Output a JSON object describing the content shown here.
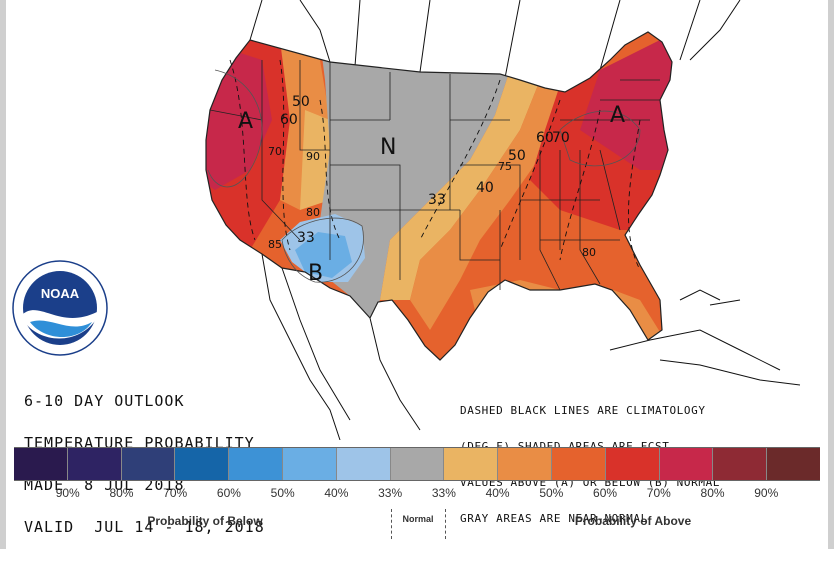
{
  "outlook": {
    "line1": "6-10 DAY OUTLOOK",
    "line2": "TEMPERATURE PROBABILITY",
    "line3": "MADE  8 JUL 2018",
    "line4": "VALID  JUL 14 - 18, 2018"
  },
  "notes": {
    "line1": "DASHED BLACK LINES ARE CLIMATOLOGY",
    "line2": "(DEG F) SHADED AREAS ARE FCST",
    "line3": "VALUES ABOVE (A) OR BELOW (B) NORMAL",
    "line4": "GRAY AREAS ARE NEAR-NORMAL"
  },
  "map_labels": {
    "above_west": "A",
    "above_east": "A",
    "below": "B",
    "normal": "N",
    "p33_sw": "33",
    "p33_plains": "33",
    "p40": "40",
    "p50_east": "50",
    "p50_west": "50",
    "p60_west": "60",
    "p60_east": "60",
    "p70_east": "70",
    "c70": "70",
    "c75": "75",
    "c80_sw": "80",
    "c80_se": "80",
    "c85": "85",
    "c90": "90"
  },
  "logo": {
    "text": "NOAA"
  },
  "legend": {
    "colors": [
      "#2a1a4e",
      "#2e2363",
      "#2f3f78",
      "#1565a8",
      "#3d92d6",
      "#6aaee4",
      "#9ec4e8",
      "#a8a8a8",
      "#eab463",
      "#e98d45",
      "#e5622d",
      "#d9322a",
      "#c7284a",
      "#8e2a34",
      "#6b2a2a"
    ],
    "ticks": [
      "90%",
      "80%",
      "70%",
      "60%",
      "50%",
      "40%",
      "33%",
      "33%",
      "40%",
      "50%",
      "60%",
      "70%",
      "80%",
      "90%"
    ],
    "below_label": "Probability of Below",
    "normal_label": "Normal",
    "above_label": "Probability of Above"
  }
}
